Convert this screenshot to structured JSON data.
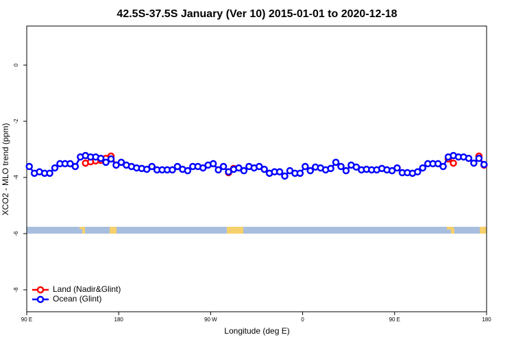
{
  "chart_data": {
    "type": "line",
    "title": "42.5S-37.5S January (Ver 10)   2015-01-01 to 2020-12-18",
    "x_label": "Longitude (deg E)",
    "y_label": "XCO2 - MLO trend (ppm)",
    "xlim": [
      90,
      540
    ],
    "ylim": [
      -8.78,
      1.39
    ],
    "xticks": [
      {
        "value": 90,
        "label": "90 E"
      },
      {
        "value": 180,
        "label": "180"
      },
      {
        "value": 270,
        "label": "90 W"
      },
      {
        "value": 360,
        "label": "0"
      },
      {
        "value": 450,
        "label": "90 E"
      },
      {
        "value": 540,
        "label": "180"
      }
    ],
    "yticks": [
      -8,
      -6,
      -4,
      -2,
      0
    ],
    "legend": "bottom-left",
    "x": [
      92.5,
      97.5,
      102.5,
      107.5,
      112.5,
      117.5,
      122.5,
      127.5,
      132.5,
      137.5,
      142.5,
      147.5,
      152.5,
      157.5,
      162.5,
      167.5,
      172.5,
      177.5,
      182.5,
      187.5,
      192.5,
      197.5,
      202.5,
      207.5,
      212.5,
      217.5,
      222.5,
      227.5,
      232.5,
      237.5,
      242.5,
      247.5,
      252.5,
      257.5,
      262.5,
      267.5,
      272.5,
      277.5,
      282.5,
      287.5,
      292.5,
      297.5,
      302.5,
      307.5,
      312.5,
      317.5,
      322.5,
      327.5,
      332.5,
      337.5,
      342.5,
      347.5,
      352.5,
      357.5,
      362.5,
      367.5,
      372.5,
      377.5,
      382.5,
      387.5,
      392.5,
      397.5,
      402.5,
      407.5,
      412.5,
      417.5,
      422.5,
      427.5,
      432.5,
      437.5,
      442.5,
      447.5,
      452.5,
      457.5,
      462.5,
      467.5,
      472.5,
      477.5,
      482.5,
      487.5,
      492.5,
      497.5,
      502.5,
      507.5,
      512.5,
      517.5,
      522.5,
      527.5,
      532.5,
      537.5
    ],
    "series": [
      {
        "name": "Land (Nadir&Glint)",
        "color": "#ff0000",
        "values": [
          null,
          null,
          null,
          null,
          null,
          null,
          null,
          null,
          null,
          null,
          null,
          -3.49,
          -3.44,
          -3.41,
          -3.39,
          -3.32,
          -3.24,
          -3.56,
          null,
          null,
          null,
          null,
          null,
          null,
          null,
          null,
          null,
          null,
          null,
          null,
          null,
          null,
          null,
          null,
          null,
          null,
          null,
          null,
          null,
          -3.83,
          -3.68,
          null,
          null,
          null,
          null,
          null,
          null,
          null,
          null,
          null,
          null,
          null,
          null,
          null,
          null,
          null,
          null,
          null,
          null,
          null,
          null,
          null,
          null,
          null,
          null,
          null,
          null,
          null,
          null,
          null,
          null,
          null,
          null,
          null,
          null,
          null,
          null,
          null,
          null,
          null,
          null,
          null,
          -3.34,
          -3.49,
          null,
          null,
          null,
          null,
          -3.24,
          -3.56
        ]
      },
      {
        "name": "Ocean (Glint)",
        "color": "#0000ff",
        "values": [
          -3.61,
          -3.85,
          -3.8,
          -3.85,
          -3.85,
          -3.66,
          -3.51,
          -3.51,
          -3.51,
          -3.61,
          -3.27,
          -3.22,
          -3.27,
          -3.27,
          -3.32,
          -3.46,
          -3.34,
          -3.56,
          -3.46,
          -3.56,
          -3.61,
          -3.66,
          -3.68,
          -3.71,
          -3.61,
          -3.73,
          -3.73,
          -3.73,
          -3.73,
          -3.61,
          -3.71,
          -3.76,
          -3.61,
          -3.61,
          -3.66,
          -3.56,
          -3.51,
          -3.73,
          -3.61,
          -3.8,
          -3.71,
          -3.66,
          -3.76,
          -3.61,
          -3.66,
          -3.61,
          -3.71,
          -3.85,
          -3.8,
          -3.8,
          -3.95,
          -3.76,
          -3.85,
          -3.85,
          -3.61,
          -3.76,
          -3.63,
          -3.66,
          -3.73,
          -3.68,
          -3.46,
          -3.61,
          -3.76,
          -3.56,
          -3.63,
          -3.73,
          -3.71,
          -3.73,
          -3.73,
          -3.68,
          -3.73,
          -3.76,
          -3.66,
          -3.83,
          -3.83,
          -3.85,
          -3.8,
          -3.66,
          -3.51,
          -3.51,
          -3.51,
          -3.61,
          -3.27,
          -3.22,
          -3.27,
          -3.27,
          -3.32,
          -3.49,
          -3.32,
          -3.54
        ]
      }
    ]
  }
}
